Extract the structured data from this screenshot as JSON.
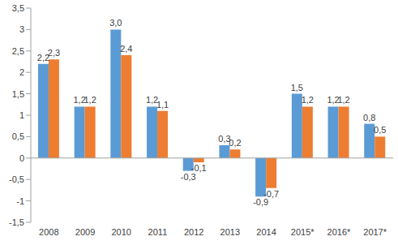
{
  "chart_data": {
    "type": "bar",
    "categories": [
      "2008",
      "2009",
      "2010",
      "2011",
      "2012",
      "2013",
      "2014",
      "2015*",
      "2016*",
      "2017*"
    ],
    "series": [
      {
        "color": "#5B9BD5",
        "values": [
          2.2,
          1.2,
          3.0,
          1.2,
          -0.3,
          0.3,
          -0.9,
          1.5,
          1.2,
          0.8
        ],
        "value_labels": [
          "2,2",
          "1,2",
          "3,0",
          "1,2",
          "-0,3",
          "0,3",
          "-0,9",
          "1,5",
          "1,2",
          "0,8"
        ]
      },
      {
        "color": "#ED7D31",
        "values": [
          2.3,
          1.2,
          2.4,
          1.1,
          -0.1,
          0.2,
          -0.7,
          1.2,
          1.2,
          0.5
        ],
        "value_labels": [
          "2,3",
          "1,2",
          "2,4",
          "1,1",
          "-0,1",
          "0,2",
          "-0,7",
          "1,2",
          "1,2",
          "0,5"
        ]
      }
    ],
    "ylim": [
      -1.5,
      3.5
    ],
    "yticks": [
      {
        "value": -1.5,
        "label": "-1,5"
      },
      -1,
      {
        "value": -0.5,
        "label": "-0,5"
      },
      0,
      {
        "value": 0.5,
        "label": "0,5"
      },
      1,
      {
        "value": 1.5,
        "label": "1,5"
      },
      2,
      {
        "value": 2.5,
        "label": "2,5"
      },
      3,
      {
        "value": 3.5,
        "label": "3,5"
      }
    ],
    "grid": false,
    "data_labels": true
  }
}
